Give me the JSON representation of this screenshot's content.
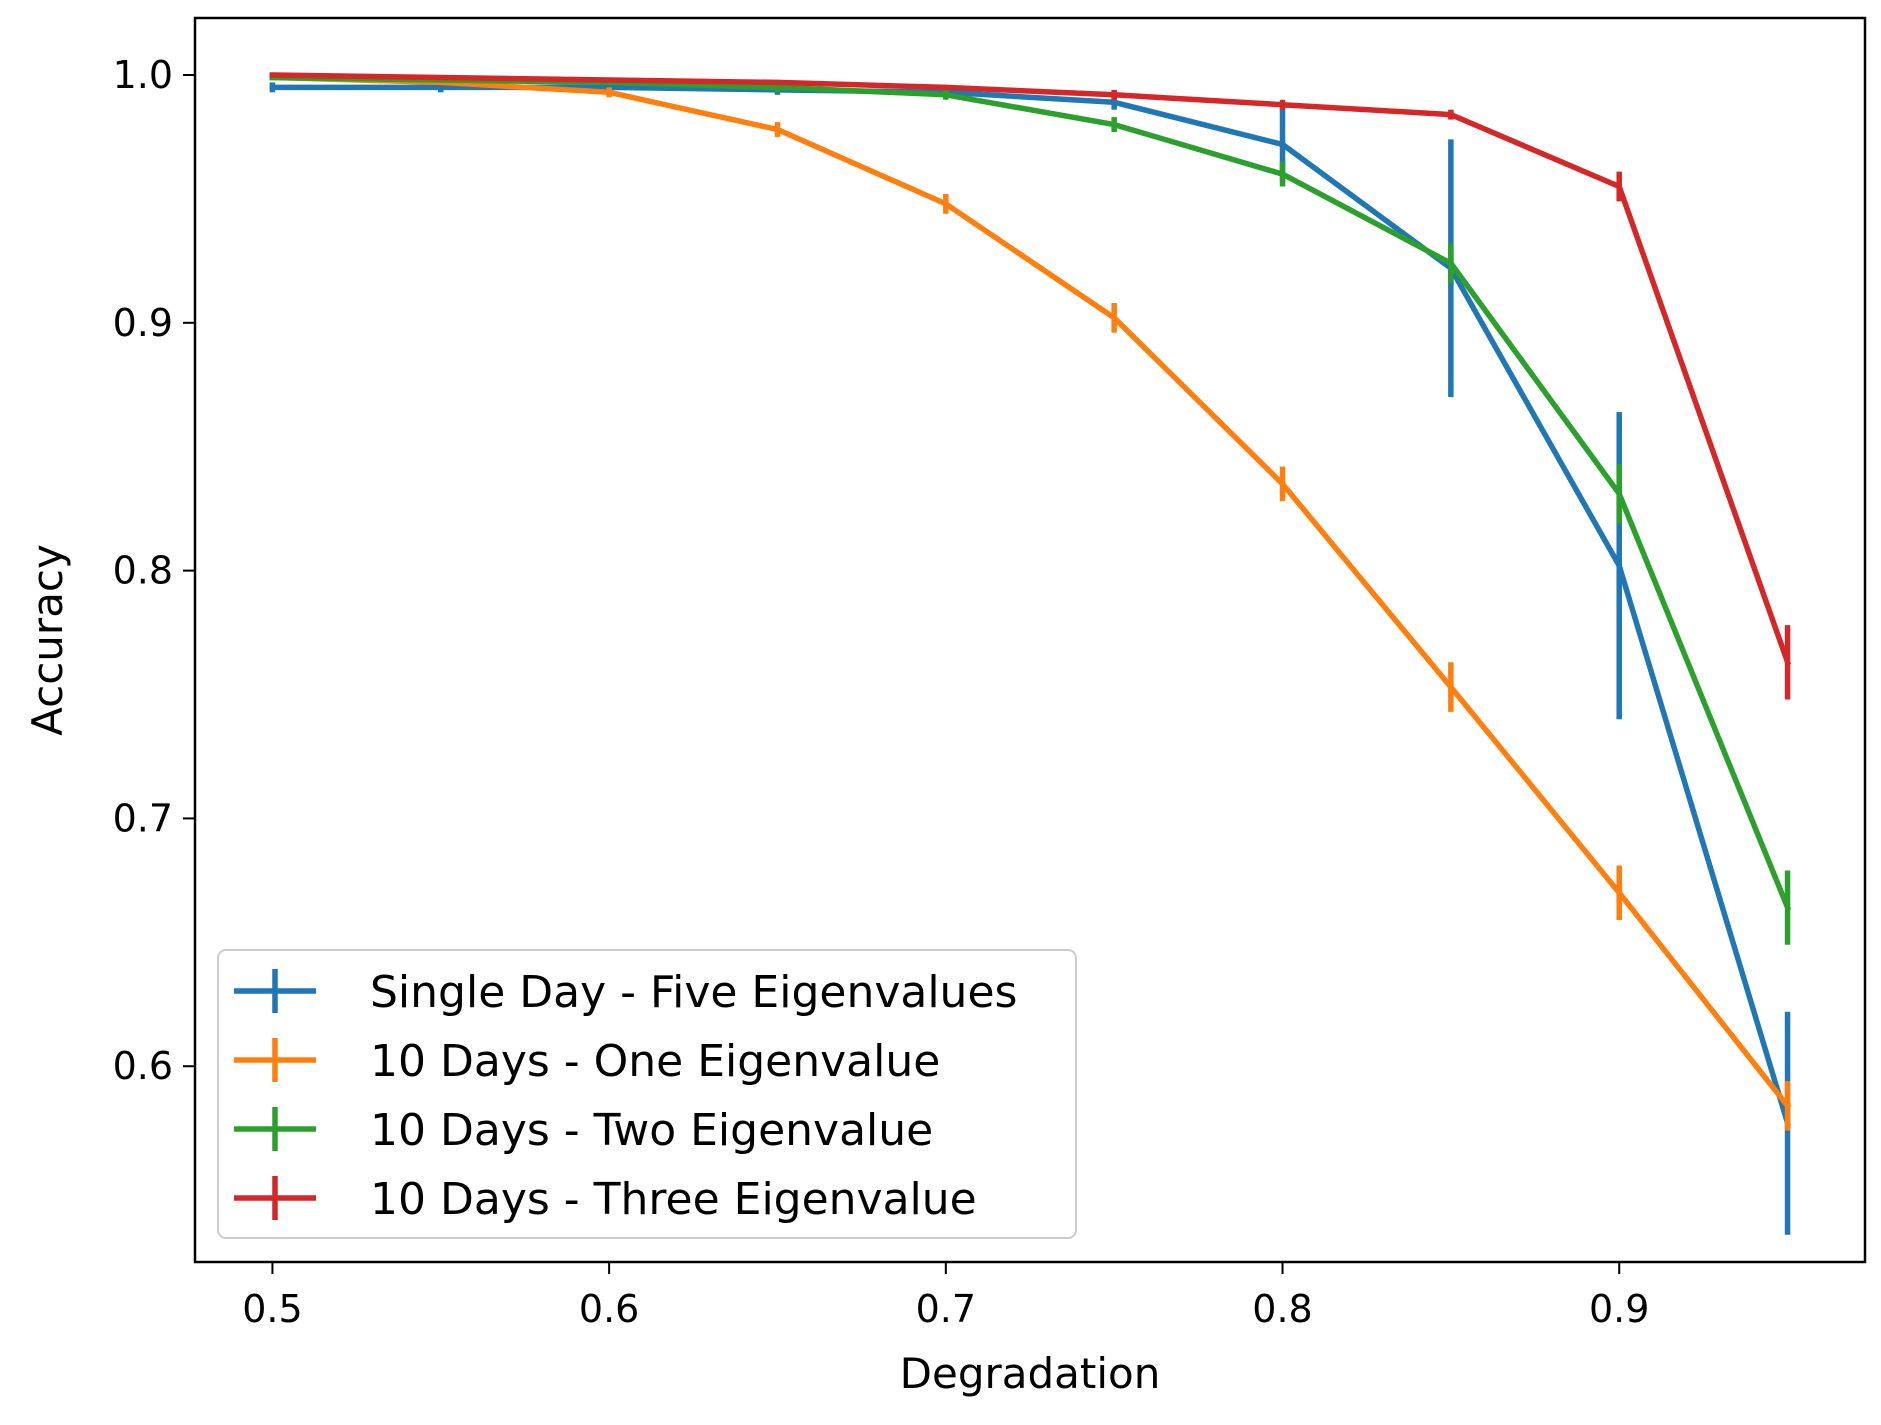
{
  "chart_data": {
    "type": "line",
    "title": "",
    "xlabel": "Degradation",
    "ylabel": "Accuracy",
    "xlim": [
      0.477,
      0.973
    ],
    "ylim": [
      0.521,
      1.023
    ],
    "xticks": [
      0.5,
      0.6,
      0.7,
      0.8,
      0.9
    ],
    "xtick_labels": [
      "0.5",
      "0.6",
      "0.7",
      "0.8",
      "0.9"
    ],
    "yticks": [
      0.6,
      0.7,
      0.8,
      0.9,
      1.0
    ],
    "ytick_labels": [
      "0.6",
      "0.7",
      "0.8",
      "0.9",
      "1.0"
    ],
    "grid": false,
    "legend_position": "lower-left",
    "x": [
      0.5,
      0.55,
      0.6,
      0.65,
      0.7,
      0.75,
      0.8,
      0.85,
      0.9,
      0.95
    ],
    "series": [
      {
        "name": "Single Day - Five Eigenvalues",
        "color": "#1f77b4",
        "values": [
          0.995,
          0.995,
          0.995,
          0.994,
          0.993,
          0.989,
          0.972,
          0.922,
          0.802,
          0.577
        ],
        "errors": [
          0.002,
          0.002,
          0.002,
          0.002,
          0.002,
          0.003,
          0.015,
          0.052,
          0.062,
          0.045
        ]
      },
      {
        "name": "10 Days - One Eigenvalue",
        "color": "#ff7f0e",
        "values": [
          0.999,
          0.997,
          0.993,
          0.978,
          0.948,
          0.902,
          0.835,
          0.753,
          0.67,
          0.584
        ],
        "errors": [
          0.001,
          0.001,
          0.002,
          0.003,
          0.004,
          0.006,
          0.007,
          0.01,
          0.011,
          0.01
        ]
      },
      {
        "name": "10 Days - Two Eigenvalue",
        "color": "#2ca02c",
        "values": [
          0.999,
          0.998,
          0.997,
          0.995,
          0.992,
          0.98,
          0.96,
          0.924,
          0.831,
          0.664
        ],
        "errors": [
          0.001,
          0.001,
          0.001,
          0.002,
          0.002,
          0.003,
          0.005,
          0.008,
          0.012,
          0.015
        ]
      },
      {
        "name": "10 Days - Three Eigenvalue",
        "color": "#d62728",
        "values": [
          1.0,
          0.999,
          0.998,
          0.997,
          0.995,
          0.992,
          0.988,
          0.984,
          0.955,
          0.763
        ],
        "errors": [
          0.001,
          0.001,
          0.001,
          0.001,
          0.001,
          0.002,
          0.002,
          0.002,
          0.006,
          0.015
        ]
      }
    ]
  }
}
